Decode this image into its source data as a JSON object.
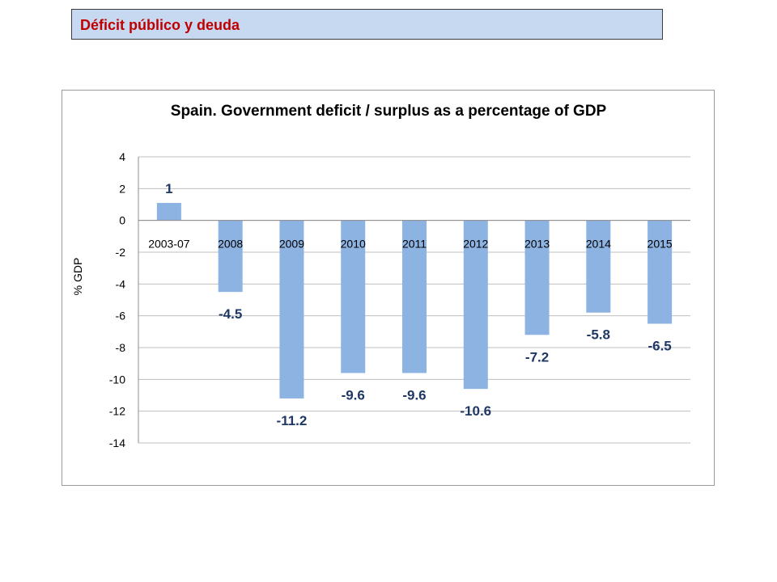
{
  "header": {
    "title": "Déficit público y deuda",
    "title_color": "#c00000",
    "background": "#c6d9f1"
  },
  "chart_data": {
    "type": "bar",
    "title": "Spain. Government deficit / surplus as a percentage of GDP",
    "xlabel": "",
    "ylabel": "% GDP",
    "categories": [
      "2003-07",
      "2008",
      "2009",
      "2010",
      "2011",
      "2012",
      "2013",
      "2014",
      "2015"
    ],
    "values": [
      1.1,
      -4.5,
      -11.2,
      -9.6,
      -9.6,
      -10.6,
      -7.2,
      -5.8,
      -6.5
    ],
    "data_labels": [
      "1",
      "-4.5",
      "-11.2",
      "-9.6",
      "-9.6",
      "-10.6",
      "-7.2",
      "-5.8",
      "-6.5"
    ],
    "ylim": [
      -14,
      4
    ],
    "yticks": [
      4,
      2,
      0,
      -2,
      -4,
      -6,
      -8,
      -10,
      -12,
      -14
    ],
    "grid": true,
    "legend": "none",
    "bar_color": "#8db3e2",
    "label_color": "#1f3864"
  }
}
